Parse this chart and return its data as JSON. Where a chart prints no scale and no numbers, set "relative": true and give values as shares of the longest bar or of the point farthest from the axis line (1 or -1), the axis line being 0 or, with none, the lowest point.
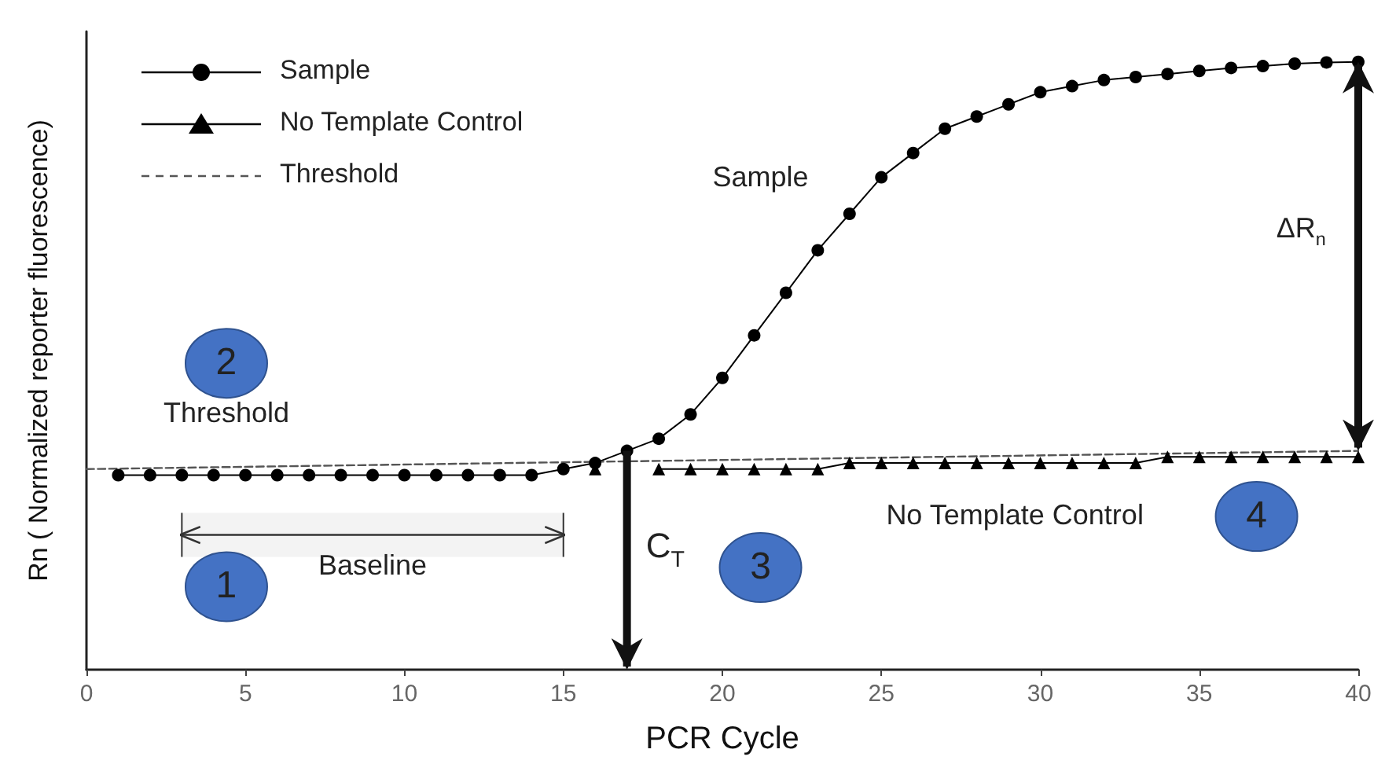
{
  "chart_data": {
    "type": "line",
    "relative": true,
    "xlabel": "PCR Cycle",
    "ylabel": "Rn ( Normalized reporter fluorescence)",
    "xlim": [
      0,
      40
    ],
    "xticks": [
      0,
      5,
      10,
      15,
      20,
      25,
      30,
      35,
      40
    ],
    "grid": false,
    "legend": "top left",
    "series": [
      {
        "name": "Sample",
        "color": "#000000",
        "marker": "circle",
        "x": [
          1,
          2,
          3,
          4,
          5,
          6,
          7,
          8,
          9,
          10,
          11,
          12,
          13,
          14,
          15,
          16,
          17,
          18,
          19,
          20,
          21,
          22,
          23,
          24,
          25,
          26,
          27,
          28,
          29,
          30,
          31,
          32,
          33,
          34,
          35,
          36,
          37,
          38,
          39,
          40
        ],
        "values": [
          0.32,
          0.32,
          0.32,
          0.32,
          0.32,
          0.32,
          0.32,
          0.32,
          0.32,
          0.32,
          0.32,
          0.32,
          0.32,
          0.32,
          0.33,
          0.34,
          0.36,
          0.38,
          0.42,
          0.48,
          0.55,
          0.62,
          0.69,
          0.75,
          0.81,
          0.85,
          0.89,
          0.91,
          0.93,
          0.95,
          0.96,
          0.97,
          0.975,
          0.98,
          0.985,
          0.99,
          0.993,
          0.997,
          0.999,
          1
        ]
      },
      {
        "name": "No Template Control",
        "color": "#000000",
        "marker": "triangle",
        "x": [
          16,
          17,
          18,
          19,
          20,
          21,
          22,
          23,
          24,
          25,
          26,
          27,
          28,
          29,
          30,
          31,
          32,
          33,
          34,
          35,
          36,
          37,
          38,
          39,
          40
        ],
        "values": [
          0.33,
          null,
          0.33,
          0.33,
          0.33,
          0.33,
          0.33,
          0.33,
          0.34,
          0.34,
          0.34,
          0.34,
          0.34,
          0.34,
          0.34,
          0.34,
          0.34,
          0.34,
          0.35,
          0.35,
          0.35,
          0.35,
          0.35,
          0.35,
          0.35
        ]
      },
      {
        "name": "Threshold",
        "color": "#555555",
        "marker": "none",
        "line_style": "dashed",
        "x": [
          0,
          40
        ],
        "values": [
          0.33,
          0.36
        ]
      }
    ],
    "ref_lines": [
      {
        "axis": "x",
        "value": 17,
        "label": "C$_{T}$"
      }
    ],
    "bands": [
      {
        "axis": "x",
        "from": 3,
        "to": 15,
        "label": "Baseline"
      }
    ],
    "annotations": [
      "Sample",
      "Threshold",
      "No Template Control",
      "1",
      "2",
      "3",
      "4",
      "ΔR$_{n}$"
    ]
  }
}
